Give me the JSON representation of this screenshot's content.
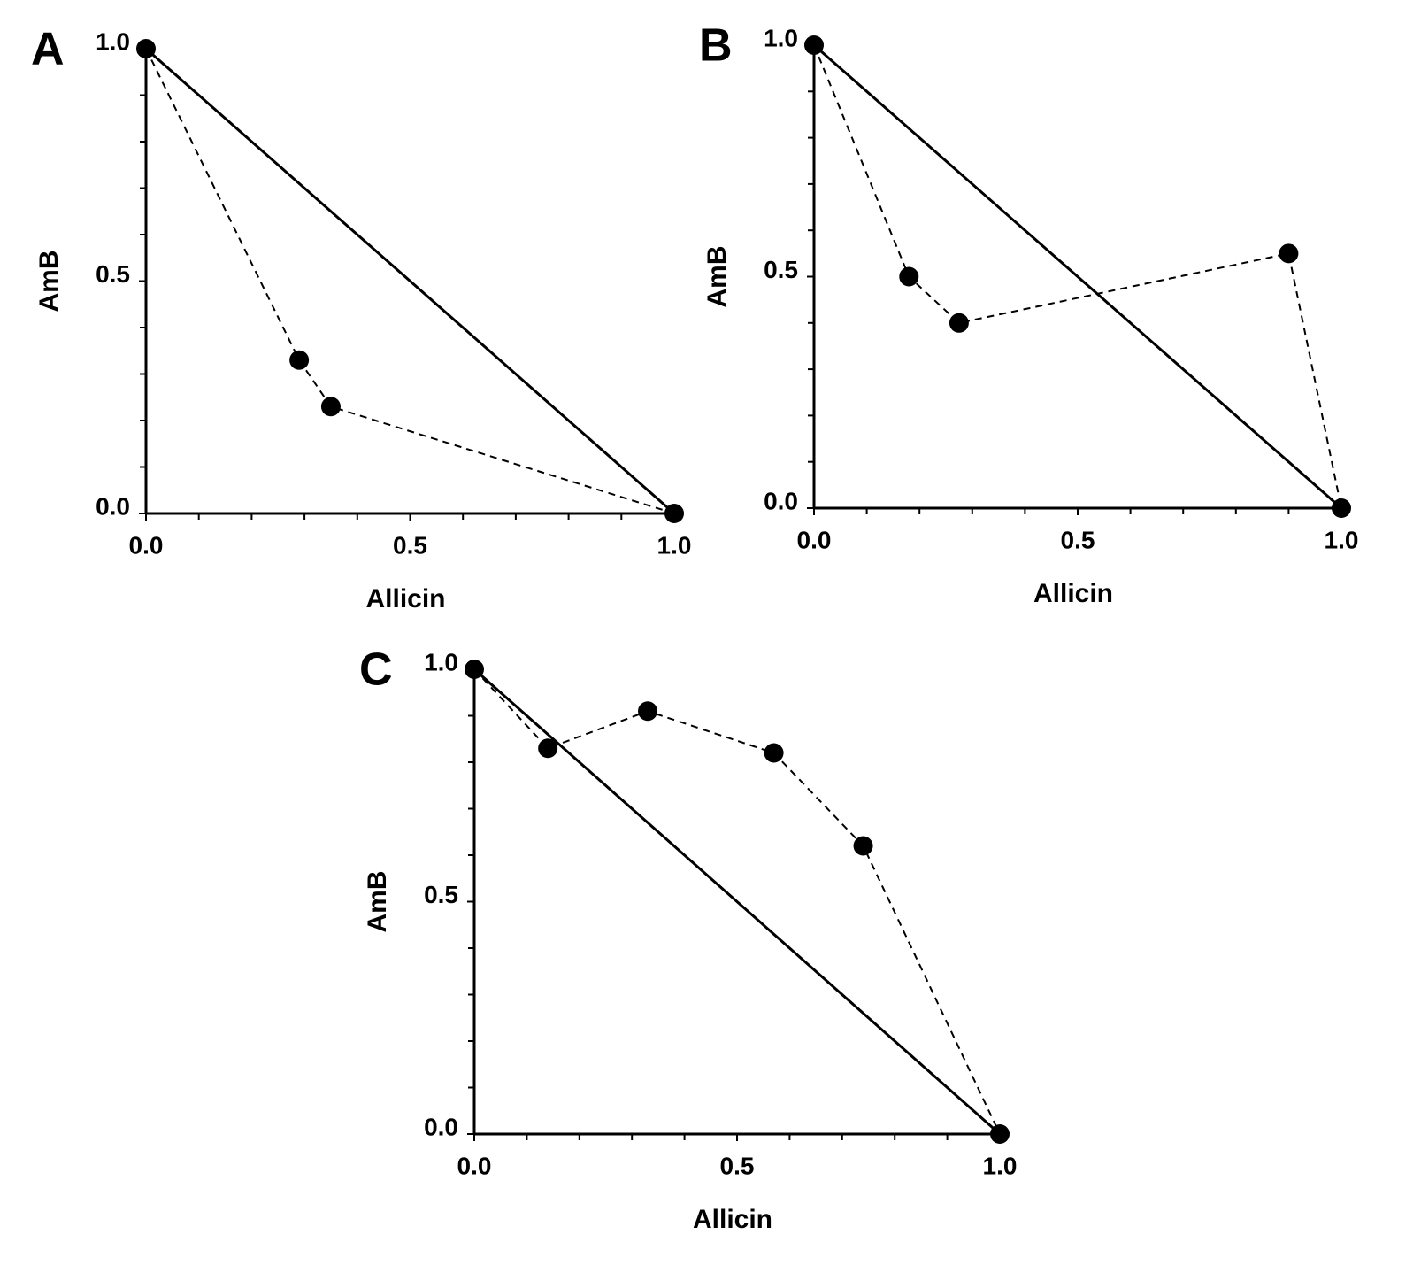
{
  "chart_data": [
    {
      "type": "line",
      "panel": "A",
      "xlabel": "Allicin",
      "ylabel": "AmB",
      "xlim": [
        0,
        1
      ],
      "ylim": [
        0,
        1
      ],
      "xticks": [
        {
          "value": 0,
          "label": "0.0"
        },
        0.5,
        {
          "value": 1,
          "label": "1.0"
        }
      ],
      "yticks": [
        {
          "value": 0,
          "label": "0.0"
        },
        0.5,
        {
          "value": 1,
          "label": "1.0"
        }
      ],
      "xminorticks": [
        0.1,
        0.2,
        0.3,
        0.4,
        0.6,
        0.7,
        0.8,
        0.9
      ],
      "yminorticks": [
        0.1,
        0.2,
        0.3,
        0.4,
        0.6,
        0.7,
        0.8,
        0.9
      ],
      "series": [
        {
          "x": [
            0,
            1
          ],
          "values": [
            1,
            0
          ],
          "color": "#000000",
          "style": "solid",
          "marker": "none"
        },
        {
          "x": [
            0,
            0.29,
            0.35,
            1
          ],
          "values": [
            1,
            0.33,
            0.23,
            0
          ],
          "color": "#000000",
          "style": "dashed",
          "marker": "circle"
        }
      ]
    },
    {
      "type": "line",
      "panel": "B",
      "xlabel": "Allicin",
      "ylabel": "AmB",
      "xlim": [
        0,
        1
      ],
      "ylim": [
        0,
        1
      ],
      "xticks": [
        {
          "value": 0,
          "label": "0.0"
        },
        0.5,
        {
          "value": 1,
          "label": "1.0"
        }
      ],
      "yticks": [
        {
          "value": 0,
          "label": "0.0"
        },
        0.5,
        {
          "value": 1,
          "label": "1.0"
        }
      ],
      "xminorticks": [
        0.1,
        0.2,
        0.3,
        0.4,
        0.6,
        0.7,
        0.8,
        0.9
      ],
      "yminorticks": [
        0.1,
        0.2,
        0.3,
        0.4,
        0.6,
        0.7,
        0.8,
        0.9
      ],
      "series": [
        {
          "x": [
            0,
            1
          ],
          "values": [
            1,
            0
          ],
          "color": "#000000",
          "style": "solid",
          "marker": "none"
        },
        {
          "x": [
            0,
            0.18,
            0.275,
            0.9,
            1
          ],
          "values": [
            1,
            0.5,
            0.4,
            0.55,
            0
          ],
          "color": "#000000",
          "style": "dashed",
          "marker": "circle"
        }
      ]
    },
    {
      "type": "line",
      "panel": "C",
      "xlabel": "Allicin",
      "ylabel": "AmB",
      "xlim": [
        0,
        1
      ],
      "ylim": [
        0,
        1
      ],
      "xticks": [
        {
          "value": 0,
          "label": "0.0"
        },
        0.5,
        {
          "value": 1,
          "label": "1.0"
        }
      ],
      "yticks": [
        {
          "value": 0,
          "label": "0.0"
        },
        0.5,
        {
          "value": 1,
          "label": "1.0"
        }
      ],
      "xminorticks": [
        0.1,
        0.2,
        0.3,
        0.4,
        0.6,
        0.7,
        0.8,
        0.9
      ],
      "yminorticks": [
        0.1,
        0.2,
        0.3,
        0.4,
        0.6,
        0.7,
        0.8,
        0.9
      ],
      "series": [
        {
          "x": [
            0,
            1
          ],
          "values": [
            1,
            0
          ],
          "color": "#000000",
          "style": "solid",
          "marker": "none"
        },
        {
          "x": [
            0,
            0.14,
            0.33,
            0.57,
            0.74,
            1
          ],
          "values": [
            1,
            0.83,
            0.91,
            0.82,
            0.62,
            0
          ],
          "color": "#000000",
          "style": "dashed",
          "marker": "circle"
        }
      ]
    }
  ]
}
